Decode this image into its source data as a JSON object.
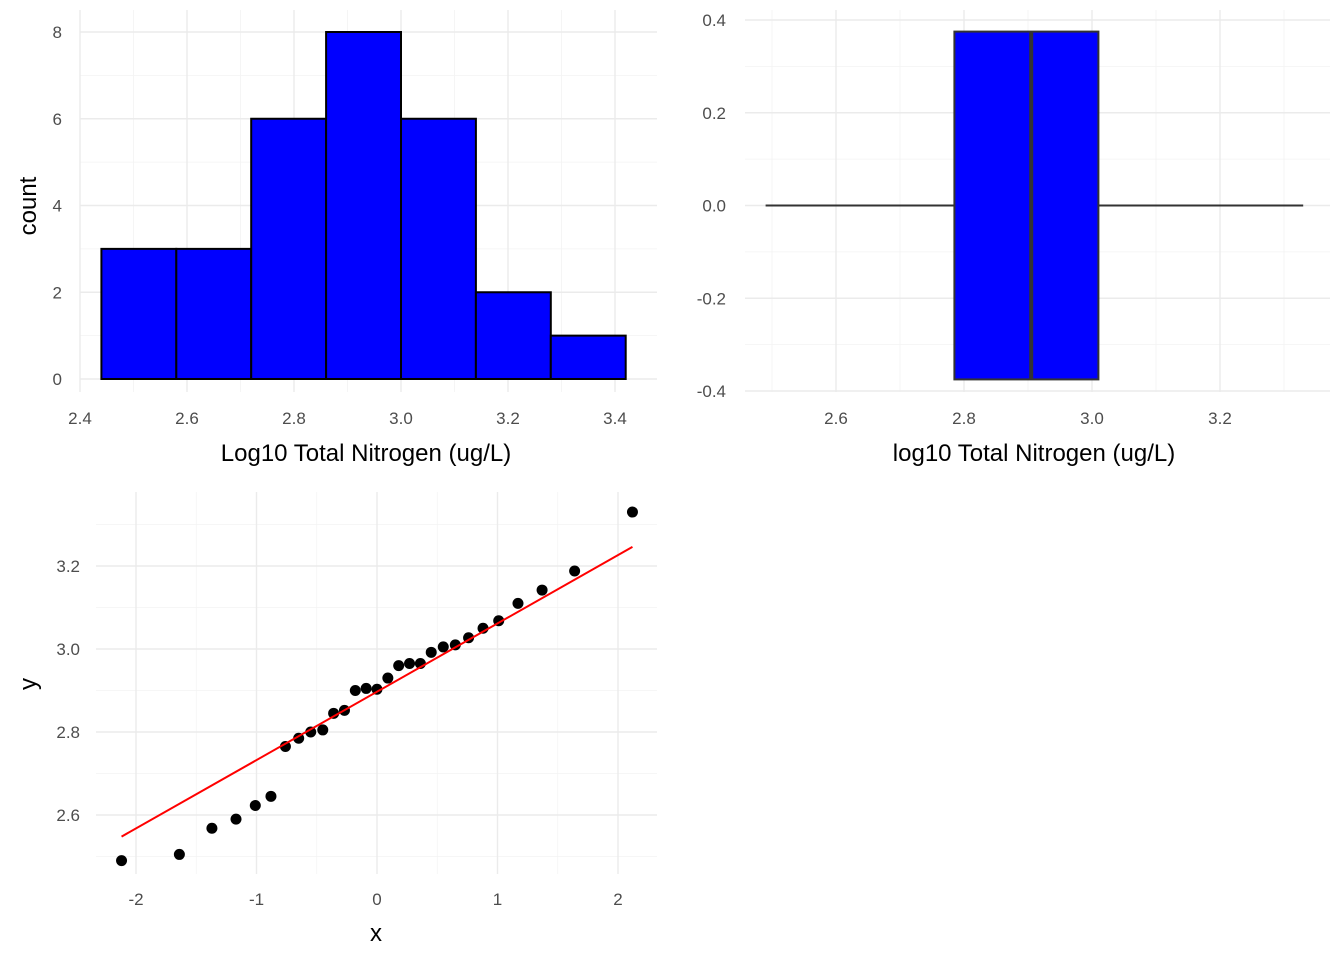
{
  "chart_data": [
    {
      "type": "bar",
      "subtype": "histogram",
      "xlabel": "Log10 Total Nitrogen (ug/L)",
      "ylabel": "count",
      "xlim": [
        2.44,
        3.42
      ],
      "ylim": [
        0,
        8
      ],
      "xticks": [
        "2.4",
        "2.6",
        "2.8",
        "3.0",
        "3.2",
        "3.4"
      ],
      "yticks": [
        "0",
        "2",
        "4",
        "6",
        "8"
      ],
      "bins": [
        {
          "x0": 2.44,
          "x1": 2.58,
          "count": 3
        },
        {
          "x0": 2.58,
          "x1": 2.72,
          "count": 3
        },
        {
          "x0": 2.72,
          "x1": 2.86,
          "count": 6
        },
        {
          "x0": 2.86,
          "x1": 3.0,
          "count": 8
        },
        {
          "x0": 3.0,
          "x1": 3.14,
          "count": 6
        },
        {
          "x0": 3.14,
          "x1": 3.28,
          "count": 2
        },
        {
          "x0": 3.28,
          "x1": 3.42,
          "count": 1
        }
      ],
      "fill": "#0000ff",
      "grid": true
    },
    {
      "type": "boxplot",
      "xlabel": "log10 Total Nitrogen (ug/L)",
      "ylabel": "",
      "xlim": [
        2.49,
        3.33
      ],
      "ylim": [
        -0.4,
        0.4
      ],
      "xticks": [
        "2.6",
        "2.8",
        "3.0",
        "3.2"
      ],
      "yticks": [
        "0.4",
        "0.2",
        "0.0",
        "-0.2",
        "-0.4"
      ],
      "box": {
        "min": 2.49,
        "q1": 2.785,
        "median": 2.905,
        "q3": 3.01,
        "max": 3.33,
        "ymin": -0.375,
        "ymax": 0.375
      },
      "fill": "#0000ff",
      "grid": true
    },
    {
      "type": "scatter",
      "subtype": "qq-plot",
      "xlabel": "x",
      "ylabel": "y",
      "xlim": [
        -2.3,
        2.3
      ],
      "ylim": [
        2.46,
        3.36
      ],
      "xticks": [
        "-2",
        "-1",
        "0",
        "1",
        "2"
      ],
      "yticks": [
        "2.6",
        "2.8",
        "3.0",
        "3.2"
      ],
      "points": [
        {
          "x": -2.12,
          "y": 2.49
        },
        {
          "x": -1.64,
          "y": 2.505
        },
        {
          "x": -1.37,
          "y": 2.568
        },
        {
          "x": -1.17,
          "y": 2.59
        },
        {
          "x": -1.01,
          "y": 2.623
        },
        {
          "x": -0.88,
          "y": 2.645
        },
        {
          "x": -0.76,
          "y": 2.765
        },
        {
          "x": -0.65,
          "y": 2.785
        },
        {
          "x": -0.55,
          "y": 2.8
        },
        {
          "x": -0.45,
          "y": 2.805
        },
        {
          "x": -0.36,
          "y": 2.845
        },
        {
          "x": -0.27,
          "y": 2.852
        },
        {
          "x": -0.18,
          "y": 2.9
        },
        {
          "x": -0.09,
          "y": 2.905
        },
        {
          "x": 0.0,
          "y": 2.903
        },
        {
          "x": 0.09,
          "y": 2.93
        },
        {
          "x": 0.18,
          "y": 2.96
        },
        {
          "x": 0.27,
          "y": 2.965
        },
        {
          "x": 0.36,
          "y": 2.965
        },
        {
          "x": 0.45,
          "y": 2.992
        },
        {
          "x": 0.55,
          "y": 3.005
        },
        {
          "x": 0.65,
          "y": 3.01
        },
        {
          "x": 0.76,
          "y": 3.027
        },
        {
          "x": 0.88,
          "y": 3.05
        },
        {
          "x": 1.01,
          "y": 3.068
        },
        {
          "x": 1.17,
          "y": 3.11
        },
        {
          "x": 1.37,
          "y": 3.142
        },
        {
          "x": 1.64,
          "y": 3.188
        },
        {
          "x": 2.12,
          "y": 3.33
        }
      ],
      "reference_line": {
        "x0": -2.12,
        "y0": 2.548,
        "x1": 2.12,
        "y1": 3.246,
        "color": "#ff0000"
      },
      "point_color": "#000000",
      "grid": true
    }
  ]
}
